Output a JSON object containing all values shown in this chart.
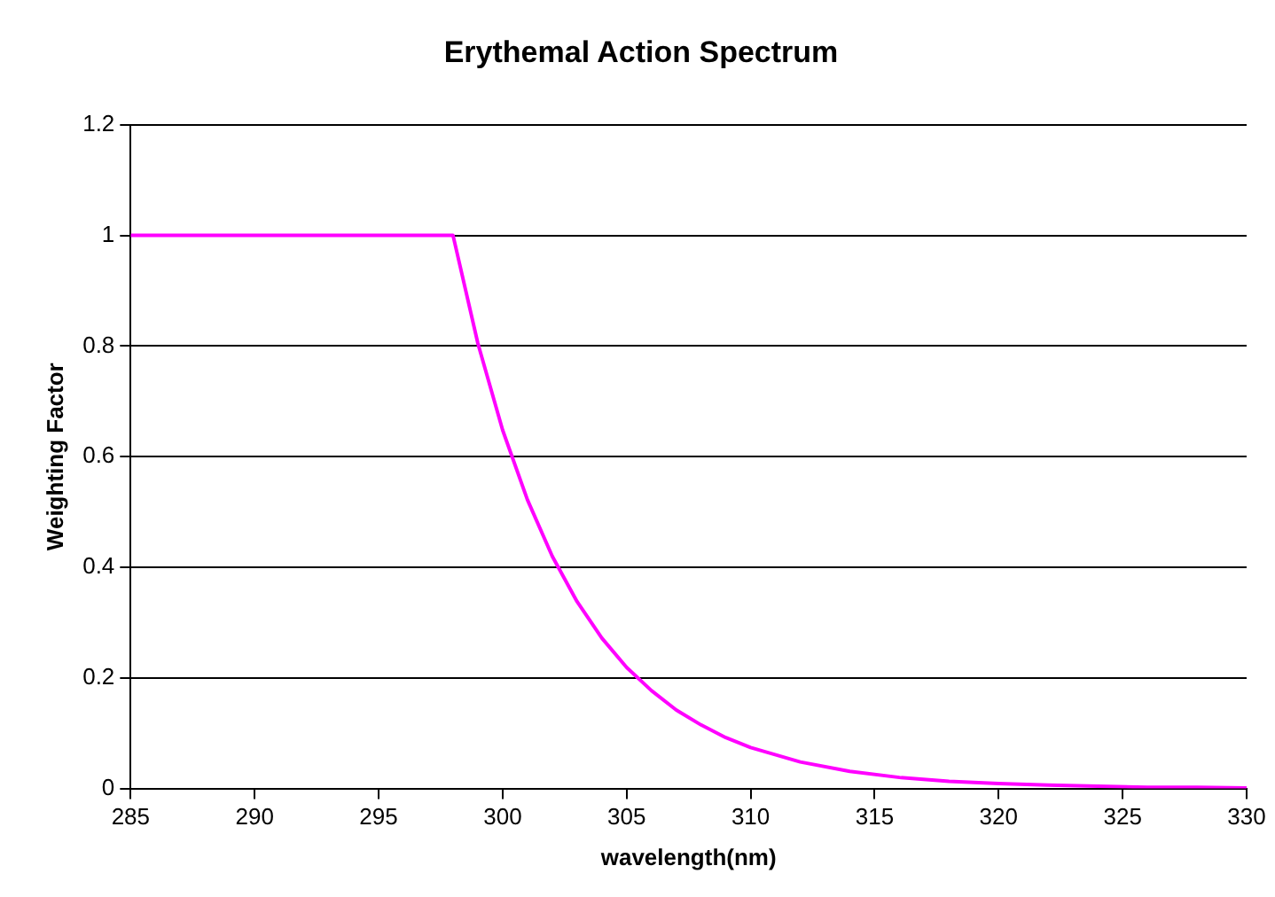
{
  "chart_data": {
    "type": "line",
    "title": "Erythemal Action Spectrum",
    "xlabel": "wavelength(nm)",
    "ylabel": "Weighting Factor",
    "x": [
      285,
      290,
      295,
      298,
      299,
      300,
      301,
      302,
      303,
      304,
      305,
      306,
      307,
      308,
      309,
      310,
      312,
      314,
      316,
      318,
      320,
      322,
      324,
      326,
      328,
      330
    ],
    "series": [
      {
        "color": "#ff00ff",
        "values": [
          1,
          1,
          1,
          1,
          0.805,
          0.648,
          0.522,
          0.42,
          0.338,
          0.272,
          0.219,
          0.177,
          0.142,
          0.115,
          0.092,
          0.074,
          0.048,
          0.031,
          0.02,
          0.013,
          0.009,
          0.006,
          0.004,
          0.002,
          0.002,
          0.001
        ]
      }
    ],
    "xlim": [
      285,
      330
    ],
    "xticks": [
      285,
      290,
      295,
      300,
      305,
      310,
      315,
      320,
      325,
      330
    ],
    "ylim": [
      0,
      1.2
    ],
    "yticks": [
      0,
      0.2,
      0.4,
      0.6,
      0.8,
      1,
      1.2
    ],
    "grid": "y",
    "legend": false,
    "marker": "none",
    "line_style": "solid"
  }
}
